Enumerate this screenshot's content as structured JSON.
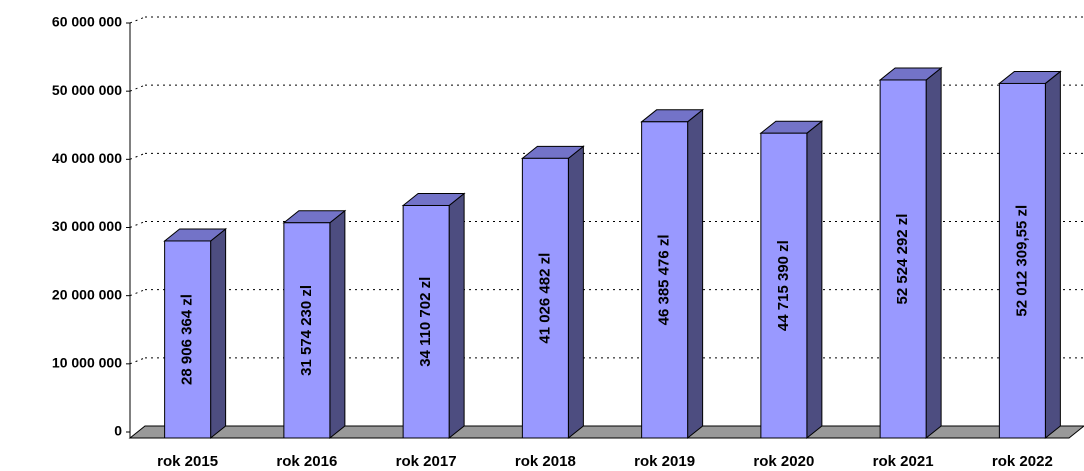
{
  "chart_data": {
    "type": "bar3d",
    "categories": [
      "rok 2015",
      "rok 2016",
      "rok 2017",
      "rok 2018",
      "rok 2019",
      "rok 2020",
      "rok 2021",
      "rok 2022"
    ],
    "values": [
      28906364,
      31574230,
      34110702,
      41026482,
      46385476,
      44715390,
      52524292,
      52012309.55
    ],
    "value_labels": [
      "28 906 364 zl",
      "31 574 230 zl",
      "34 110 702 zl",
      "41 026 482 zl",
      "46 385 476 zl",
      "44 715 390 zl",
      "52 524 292 zl",
      "52 012 309,55 zl"
    ],
    "color": "#9999ff",
    "ylim": [
      0,
      60000000
    ],
    "yticks": [
      0,
      {
        "value": 10000000,
        "label": "10 000 000"
      },
      {
        "value": 20000000,
        "label": "20 000 000"
      },
      {
        "value": 30000000,
        "label": "30 000 000"
      },
      {
        "value": 40000000,
        "label": "40 000 000"
      },
      {
        "value": 50000000,
        "label": "50 000 000"
      },
      {
        "value": 60000000,
        "label": "60 000 000"
      }
    ],
    "grid": true
  }
}
